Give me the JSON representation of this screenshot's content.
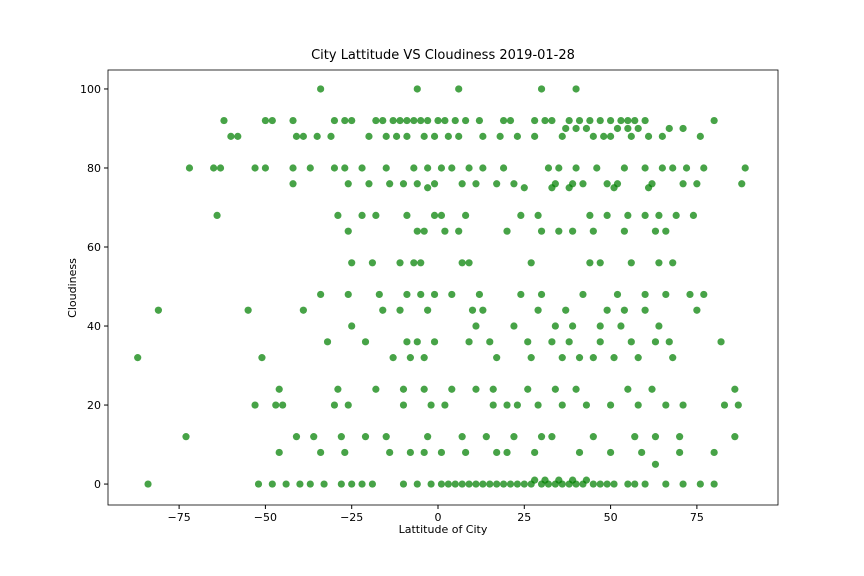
{
  "chart_data": {
    "type": "scatter",
    "title": "City Lattitude VS Cloudiness 2019-01-28",
    "x_label": "Lattitude of City",
    "y_label": "Cloudiness",
    "color": "#008000",
    "xlim": [
      -95.6,
      98.5
    ],
    "ylim": [
      -5.3,
      104.8
    ],
    "xticks": [
      {
        "value": -75,
        "label": "−75"
      },
      {
        "value": -50,
        "label": "−50"
      },
      {
        "value": -25,
        "label": "−25"
      },
      0,
      25,
      50,
      75
    ],
    "yticks": [
      0,
      20,
      40,
      60,
      80,
      100
    ],
    "x": [
      -34,
      -6,
      6,
      30,
      40,
      -62,
      -50,
      -48,
      -42,
      -30,
      -27,
      -25,
      -18,
      -16,
      -13,
      -11,
      -9,
      -7,
      -5,
      -3,
      0,
      2,
      5,
      8,
      12,
      19,
      21,
      28,
      31,
      33,
      38,
      41,
      44,
      47,
      50,
      53,
      55,
      57,
      60,
      80,
      37,
      40,
      43,
      52,
      55,
      58,
      67,
      71,
      -60,
      -58,
      -41,
      -39,
      -35,
      -31,
      -20,
      -15,
      -12,
      -9,
      -4,
      -1,
      3,
      6,
      13,
      18,
      23,
      28,
      36,
      45,
      48,
      50,
      56,
      61,
      65,
      76,
      -72,
      -65,
      -63,
      -53,
      -50,
      -42,
      -37,
      -30,
      -27,
      -22,
      -15,
      -7,
      -3,
      1,
      4,
      9,
      13,
      19,
      32,
      35,
      40,
      46,
      54,
      60,
      65,
      68,
      72,
      77,
      89,
      -42,
      -26,
      -20,
      -14,
      -10,
      -6,
      -1,
      7,
      11,
      17,
      22,
      34,
      39,
      42,
      49,
      52,
      62,
      71,
      75,
      88,
      -3,
      25,
      33,
      38,
      51,
      61,
      -64,
      -29,
      -22,
      -18,
      -9,
      -1,
      1,
      8,
      24,
      29,
      44,
      49,
      55,
      60,
      64,
      69,
      74,
      -26,
      -6,
      -4,
      2,
      6,
      20,
      30,
      35,
      39,
      45,
      54,
      63,
      66,
      -25,
      -19,
      -11,
      -7,
      -5,
      7,
      9,
      27,
      44,
      47,
      56,
      64,
      68,
      -34,
      -26,
      -17,
      -9,
      -5,
      -1,
      4,
      12,
      24,
      30,
      42,
      52,
      60,
      66,
      73,
      77,
      -81,
      -55,
      -39,
      -16,
      -11,
      -3,
      10,
      13,
      29,
      37,
      49,
      54,
      60,
      75,
      -25,
      11,
      22,
      34,
      39,
      47,
      53,
      64,
      -32,
      -21,
      -9,
      -6,
      -1,
      9,
      15,
      26,
      33,
      38,
      47,
      56,
      63,
      67,
      82,
      -87,
      -51,
      -13,
      -8,
      -4,
      17,
      27,
      36,
      41,
      45,
      51,
      58,
      68,
      -46,
      -29,
      -18,
      -10,
      -4,
      4,
      11,
      16,
      26,
      34,
      40,
      55,
      62,
      86,
      -53,
      -47,
      -45,
      -30,
      -26,
      -10,
      -2,
      2,
      16,
      20,
      23,
      29,
      36,
      43,
      50,
      58,
      66,
      71,
      83,
      87,
      -73,
      -41,
      -36,
      -28,
      -21,
      -15,
      -3,
      7,
      14,
      22,
      30,
      33,
      45,
      57,
      63,
      70,
      86,
      -46,
      -34,
      -27,
      -14,
      -8,
      -4,
      1,
      8,
      17,
      20,
      28,
      41,
      50,
      59,
      70,
      80,
      63,
      -84,
      -52,
      -48,
      -44,
      -40,
      -37,
      -33,
      -28,
      -25,
      -22,
      -19,
      -10,
      -6,
      -2,
      1,
      3,
      5,
      7,
      9,
      11,
      13,
      15,
      17,
      19,
      21,
      23,
      25,
      27,
      30,
      32,
      34,
      36,
      38,
      40,
      42,
      45,
      47,
      49,
      51,
      55,
      57,
      60,
      66,
      71,
      76,
      80,
      28,
      31,
      35,
      39,
      43
    ],
    "values": [
      100,
      100,
      100,
      100,
      100,
      92,
      92,
      92,
      92,
      92,
      92,
      92,
      92,
      92,
      92,
      92,
      92,
      92,
      92,
      92,
      92,
      92,
      92,
      92,
      92,
      92,
      92,
      92,
      92,
      92,
      92,
      92,
      92,
      92,
      92,
      92,
      92,
      92,
      92,
      92,
      90,
      90,
      90,
      90,
      90,
      90,
      90,
      90,
      88,
      88,
      88,
      88,
      88,
      88,
      88,
      88,
      88,
      88,
      88,
      88,
      88,
      88,
      88,
      88,
      88,
      88,
      88,
      88,
      88,
      88,
      88,
      88,
      88,
      88,
      80,
      80,
      80,
      80,
      80,
      80,
      80,
      80,
      80,
      80,
      80,
      80,
      80,
      80,
      80,
      80,
      80,
      80,
      80,
      80,
      80,
      80,
      80,
      80,
      80,
      80,
      80,
      80,
      80,
      76,
      76,
      76,
      76,
      76,
      76,
      76,
      76,
      76,
      76,
      76,
      76,
      76,
      76,
      76,
      76,
      76,
      76,
      76,
      76,
      75,
      75,
      75,
      75,
      75,
      75,
      68,
      68,
      68,
      68,
      68,
      68,
      68,
      68,
      68,
      68,
      68,
      68,
      68,
      68,
      68,
      68,
      68,
      64,
      64,
      64,
      64,
      64,
      64,
      64,
      64,
      64,
      64,
      64,
      64,
      64,
      56,
      56,
      56,
      56,
      56,
      56,
      56,
      56,
      56,
      56,
      56,
      56,
      56,
      48,
      48,
      48,
      48,
      48,
      48,
      48,
      48,
      48,
      48,
      48,
      48,
      48,
      48,
      48,
      48,
      44,
      44,
      44,
      44,
      44,
      44,
      44,
      44,
      44,
      44,
      44,
      44,
      44,
      44,
      40,
      40,
      40,
      40,
      40,
      40,
      40,
      40,
      36,
      36,
      36,
      36,
      36,
      36,
      36,
      36,
      36,
      36,
      36,
      36,
      36,
      36,
      36,
      32,
      32,
      32,
      32,
      32,
      32,
      32,
      32,
      32,
      32,
      32,
      32,
      32,
      24,
      24,
      24,
      24,
      24,
      24,
      24,
      24,
      24,
      24,
      24,
      24,
      24,
      24,
      20,
      20,
      20,
      20,
      20,
      20,
      20,
      20,
      20,
      20,
      20,
      20,
      20,
      20,
      20,
      20,
      20,
      20,
      20,
      20,
      12,
      12,
      12,
      12,
      12,
      12,
      12,
      12,
      12,
      12,
      12,
      12,
      12,
      12,
      12,
      12,
      12,
      8,
      8,
      8,
      8,
      8,
      8,
      8,
      8,
      8,
      8,
      8,
      8,
      8,
      8,
      8,
      8,
      5,
      0,
      0,
      0,
      0,
      0,
      0,
      0,
      0,
      0,
      0,
      0,
      0,
      0,
      0,
      0,
      0,
      0,
      0,
      0,
      0,
      0,
      0,
      0,
      0,
      0,
      0,
      0,
      0,
      0,
      0,
      0,
      0,
      0,
      0,
      0,
      0,
      0,
      0,
      0,
      0,
      0,
      0,
      0,
      0,
      0,
      0,
      1,
      1,
      1,
      1,
      1
    ]
  }
}
